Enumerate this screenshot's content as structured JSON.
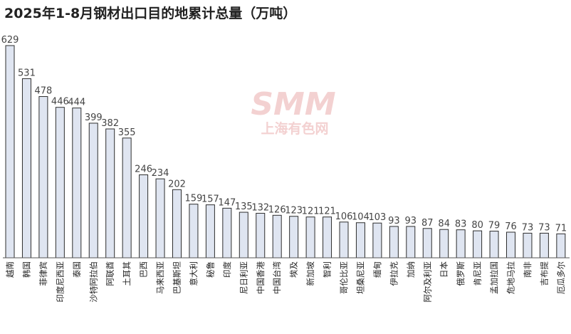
{
  "chart_data": {
    "type": "bar",
    "title": "2025年1-8月钢材出口目的地累计总量（万吨）",
    "xlabel": "",
    "ylabel": "",
    "ylim": [
      0,
      629
    ],
    "grid": false,
    "categories": [
      "越南",
      "韩国",
      "菲律宾",
      "印度尼西亚",
      "泰国",
      "沙特阿拉伯",
      "阿联酋",
      "土耳其",
      "巴西",
      "马来西亚",
      "巴基斯坦",
      "意大利",
      "秘鲁",
      "印度",
      "尼日利亚",
      "中国香港",
      "中国台湾",
      "埃及",
      "新加坡",
      "智利",
      "哥伦比亚",
      "坦桑尼亚",
      "缅甸",
      "伊拉克",
      "加纳",
      "阿尔及利亚",
      "日本",
      "俄罗斯",
      "肯尼亚",
      "孟加拉国",
      "危地马拉",
      "南非",
      "吉布提",
      "厄瓜多尔"
    ],
    "values": [
      629,
      531,
      478,
      446,
      444,
      399,
      382,
      355,
      246,
      234,
      202,
      159,
      157,
      147,
      135,
      132,
      126,
      123,
      121,
      121,
      106,
      104,
      103,
      93,
      93,
      87,
      84,
      83,
      80,
      79,
      76,
      73,
      73,
      71
    ]
  },
  "watermark": {
    "logo_text": "SMM",
    "sub_text": "上海有色网"
  },
  "colors": {
    "bar_fill": "#dfe5f1",
    "bar_stroke": "#2d2d2d",
    "value_label": "#444444",
    "category_label": "#222222",
    "baseline": "#555555",
    "watermark": "#f2c9c9"
  }
}
